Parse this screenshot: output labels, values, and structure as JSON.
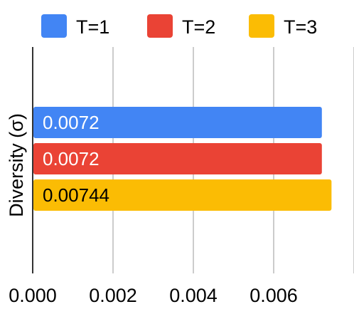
{
  "chart_data": {
    "type": "bar",
    "orientation": "horizontal",
    "title": "",
    "xlabel": "",
    "ylabel": "Diversity (σ)",
    "categories": [
      ""
    ],
    "series": [
      {
        "name": "T=1",
        "values": [
          0.0072
        ],
        "label": "0.0072",
        "color": "#4285F4",
        "label_color": "#ffffff"
      },
      {
        "name": "T=2",
        "values": [
          0.0072
        ],
        "label": "0.0072",
        "color": "#EA4335",
        "label_color": "#ffffff"
      },
      {
        "name": "T=3",
        "values": [
          0.00744
        ],
        "label": "0.00744",
        "color": "#FBBC04",
        "label_color": "#000000"
      }
    ],
    "xlim": [
      0,
      0.008
    ],
    "xticks": [
      0,
      0.002,
      0.004,
      0.006,
      0.008
    ],
    "xtick_labels": [
      "0.000",
      "0.002",
      "0.004",
      "0.006",
      ""
    ],
    "grid": "vertical",
    "legend": "top"
  }
}
